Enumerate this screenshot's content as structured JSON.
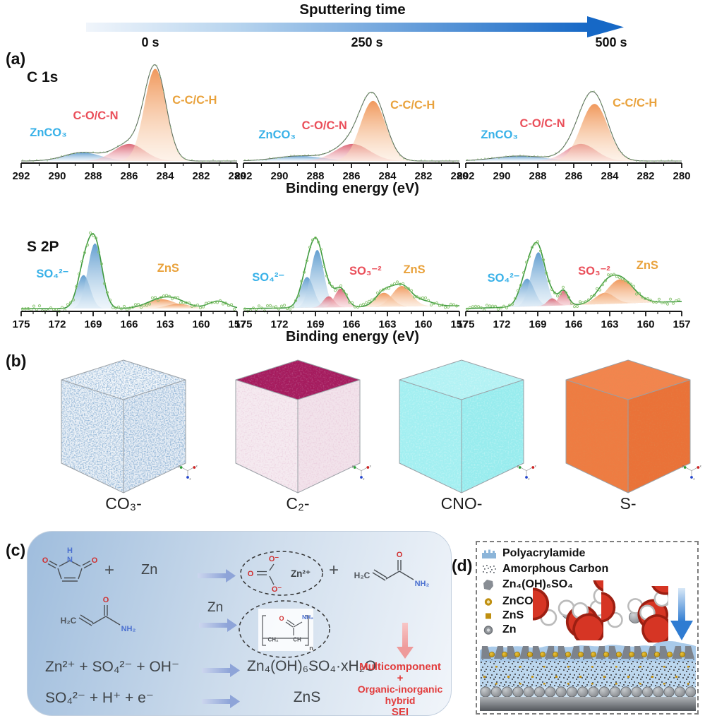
{
  "header": {
    "title": "Sputtering time",
    "times": [
      "0 s",
      "250 s",
      "500 s"
    ]
  },
  "panels": {
    "a": "(a)",
    "b": "(b)",
    "c": "(c)",
    "d": "(d)"
  },
  "xlabel": "Binding energy (eV)",
  "chart_data": [
    {
      "id": "c1s",
      "type": "area",
      "region_label": "C 1s",
      "xlabel": "Binding energy (eV)",
      "x_ticks": [
        292,
        290,
        288,
        286,
        284,
        282,
        280
      ],
      "x_minor_step": 1,
      "legend": [
        {
          "text": "ZnCO₃",
          "color": "#38b1e8",
          "fill": "blue"
        },
        {
          "text": "C-O/C-N",
          "color": "#ea4f5a",
          "fill": "pink"
        },
        {
          "text": "C-C/C-H",
          "color": "#e9a23c",
          "fill": "orange"
        }
      ],
      "panels": [
        {
          "time": "0 s",
          "baseline": [
            2,
            2
          ],
          "extra": [],
          "components": [
            {
              "fill": "blue",
              "center": 288.6,
              "sigma": 1.0,
              "height": 0.085
            },
            {
              "fill": "pink",
              "center": 286.0,
              "sigma": 0.85,
              "height": 0.17
            },
            {
              "fill": "orange",
              "center": 284.55,
              "sigma": 0.6,
              "height": 0.92
            }
          ]
        },
        {
          "time": "250 s",
          "baseline": [
            2,
            2
          ],
          "extra": [],
          "components": [
            {
              "fill": "blue",
              "center": 288.9,
              "sigma": 1.3,
              "height": 0.05
            },
            {
              "fill": "pink",
              "center": 285.95,
              "sigma": 0.95,
              "height": 0.17
            },
            {
              "fill": "orange",
              "center": 284.8,
              "sigma": 0.7,
              "height": 0.6
            }
          ]
        },
        {
          "time": "500 s",
          "baseline": [
            2,
            2
          ],
          "extra": [],
          "components": [
            {
              "fill": "blue",
              "center": 289.0,
              "sigma": 1.4,
              "height": 0.05
            },
            {
              "fill": "pink",
              "center": 285.6,
              "sigma": 0.85,
              "height": 0.17
            },
            {
              "fill": "orange",
              "center": 284.85,
              "sigma": 0.75,
              "height": 0.57
            }
          ]
        }
      ]
    },
    {
      "id": "s2p",
      "type": "area",
      "region_label": "S 2P",
      "xlabel": "Binding energy (eV)",
      "x_ticks": [
        175,
        172,
        169,
        166,
        163,
        160,
        157
      ],
      "x_minor_step": 1,
      "legend": [
        {
          "text": "SO₄²⁻",
          "color": "#38b1e8",
          "fill": "blue"
        },
        {
          "text": "SO₃⁻²",
          "color": "#ea4f5a",
          "fill": "pink"
        },
        {
          "text": "ZnS",
          "color": "#e9a23c",
          "fill": "orange"
        }
      ],
      "panels": [
        {
          "time": "0 s",
          "baseline": [
            3,
            3
          ],
          "components": [
            {
              "fill": "blue",
              "center": 169.8,
              "sigma": 0.55,
              "height": 0.36
            },
            {
              "fill": "blue",
              "center": 168.85,
              "sigma": 0.6,
              "height": 0.7
            },
            {
              "fill": "orange",
              "center": 163.3,
              "sigma": 1.2,
              "height": 0.1
            },
            {
              "fill": "orange",
              "center": 161.9,
              "sigma": 1.0,
              "height": 0.05
            }
          ],
          "extra": [
            {
              "center": 158.6,
              "sigma": 0.8,
              "height": 0.08
            }
          ]
        },
        {
          "time": "250 s",
          "baseline": [
            3,
            7
          ],
          "components": [
            {
              "fill": "blue",
              "center": 169.7,
              "sigma": 0.55,
              "height": 0.33
            },
            {
              "fill": "blue",
              "center": 168.85,
              "sigma": 0.55,
              "height": 0.62
            },
            {
              "fill": "pink",
              "center": 167.9,
              "sigma": 0.45,
              "height": 0.12
            },
            {
              "fill": "pink",
              "center": 166.9,
              "sigma": 0.5,
              "height": 0.2
            },
            {
              "fill": "orange",
              "center": 163.3,
              "sigma": 0.7,
              "height": 0.15
            },
            {
              "fill": "orange",
              "center": 161.8,
              "sigma": 0.8,
              "height": 0.22
            }
          ],
          "extra": [
            {
              "center": 159.9,
              "sigma": 0.8,
              "height": 0.05
            }
          ]
        },
        {
          "time": "500 s",
          "baseline": [
            3,
            13
          ],
          "components": [
            {
              "fill": "blue",
              "center": 169.9,
              "sigma": 0.6,
              "height": 0.3
            },
            {
              "fill": "blue",
              "center": 168.95,
              "sigma": 0.6,
              "height": 0.58
            },
            {
              "fill": "pink",
              "center": 167.8,
              "sigma": 0.4,
              "height": 0.08
            },
            {
              "fill": "pink",
              "center": 166.85,
              "sigma": 0.38,
              "height": 0.16
            },
            {
              "fill": "orange",
              "center": 163.4,
              "sigma": 0.8,
              "height": 0.12
            },
            {
              "fill": "orange",
              "center": 162.1,
              "sigma": 1.1,
              "height": 0.26
            }
          ],
          "extra": []
        }
      ]
    }
  ],
  "cubes": {
    "labels": [
      "CO₃-",
      "C₂-",
      "CNO-",
      "S-"
    ]
  },
  "panel_c": {
    "plus": "+",
    "zn": "Zn",
    "reaction3": {
      "lhs": "Zn²⁺ + SO₄²⁻ + OH⁻",
      "product": "Zn₄(OH)₆SO₄·xH₂O"
    },
    "reaction4": {
      "lhs": "SO₄²⁻ + H⁺ + e⁻",
      "product": "ZnS"
    },
    "result": [
      "Multicomponent",
      "+",
      "Organic-inorganic hybrid",
      "SEI"
    ],
    "structures": {
      "maleimide": {
        "h": "H",
        "n": "N",
        "o_left": "O",
        "o_right": "O"
      },
      "acrylamide": {
        "ch2": "H₂C",
        "o": "O",
        "nh2": "NH₂"
      },
      "carbonate": {
        "o_top": "O⁻",
        "o_left": "O",
        "o_bottom": "O⁻",
        "zn": "Zn²⁺"
      },
      "polymer": {
        "ch2": "CH₂",
        "ch": "CH",
        "o": "O",
        "nh2": "NH₂",
        "n": "n"
      }
    }
  },
  "panel_d": {
    "legend": [
      {
        "label": "Polyacrylamide"
      },
      {
        "label": "Amorphous Carbon"
      },
      {
        "label": "Zn₄(OH)₆SO₄"
      },
      {
        "label": "ZnCO₃"
      },
      {
        "label": "ZnS"
      },
      {
        "label": "Zn"
      }
    ]
  },
  "colors": {
    "arrow_blue": "#1668c6",
    "label_blue": "#38b1e8",
    "label_red": "#ea4f5a",
    "label_orange": "#e9a23c",
    "envelope_green": "#3f9a3f",
    "result_red": "#e23c3c"
  }
}
